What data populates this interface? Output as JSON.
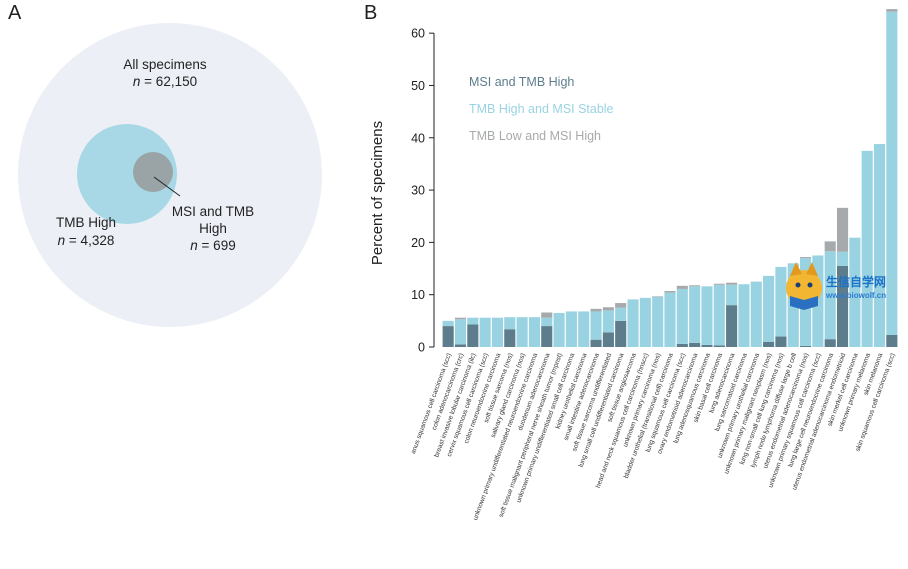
{
  "panels": {
    "a": "A",
    "b": "B"
  },
  "venn": {
    "all": {
      "title": "All specimens",
      "n_prefix": "n",
      "n_value": "= 62,150"
    },
    "tmb_high": {
      "title": "TMB High",
      "n_prefix": "n",
      "n_value": "= 4,328"
    },
    "msi_tmb": {
      "title_line1": "MSI and TMB",
      "title_line2": "High",
      "n_prefix": "n",
      "n_value": "= 699"
    },
    "colors": {
      "all": "#ecf0f6",
      "tmb_high": "#a8d8e6",
      "overlap": "#9aa3a6"
    }
  },
  "watermark": {
    "title": "生信自学网",
    "url": "www.biowolf.cn"
  },
  "chart_data": {
    "type": "bar",
    "stacked": true,
    "ylabel": "Percent of specimens",
    "ylim": [
      0,
      65
    ],
    "yticks": [
      0,
      10,
      20,
      30,
      40,
      50,
      60
    ],
    "grid": false,
    "legend_position": "top-left",
    "categories": [
      "anus squamous cell carcinoma (scc)",
      "colon adenocarcinoma (crc)",
      "breast invasive lobular carcinoma (ilc)",
      "cervix squamous cell carcinoma (scc)",
      "colon neuroendocrine carcinoma",
      "soft tissue sarcoma (nos)",
      "salivary gland carcinoma (nos)",
      "unknown primary undifferentiated neuroendocrine carcinoma",
      "duodenum adenocarcinoma",
      "soft tissue malignant peripheral nerve sheath tumor (mpnst)",
      "unknown primary undifferentiated small cell carcinoma",
      "kidney urothelial carcinoma",
      "small intestine adenocarcinoma",
      "soft tissue sarcoma undifferentiated",
      "lung small cell undifferentiated carcinoma",
      "soft tissue angiosarcoma",
      "head and neck squamous cell carcinoma (hnscc)",
      "unknown primary carcinoma (nos)",
      "bladder urothelial (transitional cell) carcinoma",
      "lung squamous cell carcinoma (scc)",
      "ovary endometrioid adenocarcinoma",
      "lung adenosquamous carcinoma",
      "skin basal cell carcinoma",
      "lung adenocarcinoma",
      "lung sarcomatoid carcinoma",
      "unknown primary urothelial carcinoma",
      "unknown primary malignant neoplasm (nos)",
      "lung non-small cell lung carcinoma (nos)",
      "lymph node lymphoma diffuse large b cell",
      "uterus endometrial adenocarcinoma (nos)",
      "unknown primary squamous cell carcinoma (scc)",
      "lung large cell neuroendocrine carcinoma",
      "uterus endometrial adenocarcinoma endometrioid",
      "skin merkel cell carcinoma",
      "unknown primary melanoma",
      "skin melanoma",
      "skin squamous cell carcinoma (scc)"
    ],
    "series": [
      {
        "name": "MSI and TMB High",
        "color": "#5e7d8c",
        "values": [
          4.0,
          0.5,
          4.3,
          0,
          0,
          3.4,
          0,
          0,
          4.0,
          0,
          0,
          0,
          1.4,
          2.8,
          5.0,
          0,
          0,
          0,
          0,
          0.6,
          0.8,
          0.4,
          0.3,
          8.0,
          0,
          0,
          1.0,
          2.0,
          0,
          0.2,
          0,
          1.5,
          15.5,
          0,
          0,
          0,
          2.3
        ]
      },
      {
        "name": "TMB High and MSI Stable",
        "color": "#99d3e2",
        "values": [
          1.0,
          4.8,
          1.3,
          5.6,
          5.6,
          2.3,
          5.7,
          5.7,
          1.6,
          6.5,
          6.8,
          6.8,
          5.4,
          4.2,
          2.5,
          9.1,
          9.4,
          9.6,
          10.4,
          10.5,
          10.8,
          11.2,
          11.6,
          3.9,
          12.0,
          12.5,
          12.6,
          13.3,
          16.0,
          16.8,
          17.5,
          16.8,
          2.7,
          20.9,
          37.5,
          38.8,
          61.8
        ]
      },
      {
        "name": "TMB Low and MSI High",
        "color": "#a7aaac",
        "values": [
          0,
          0.3,
          0,
          0,
          0,
          0,
          0,
          0,
          1.0,
          0,
          0,
          0,
          0.5,
          0.6,
          0.9,
          0,
          0,
          0.1,
          0.3,
          0.6,
          0.2,
          0,
          0.2,
          0.4,
          0,
          0,
          0,
          0,
          0,
          0.2,
          0,
          1.9,
          8.4,
          0,
          0,
          0,
          0.5
        ]
      }
    ]
  }
}
